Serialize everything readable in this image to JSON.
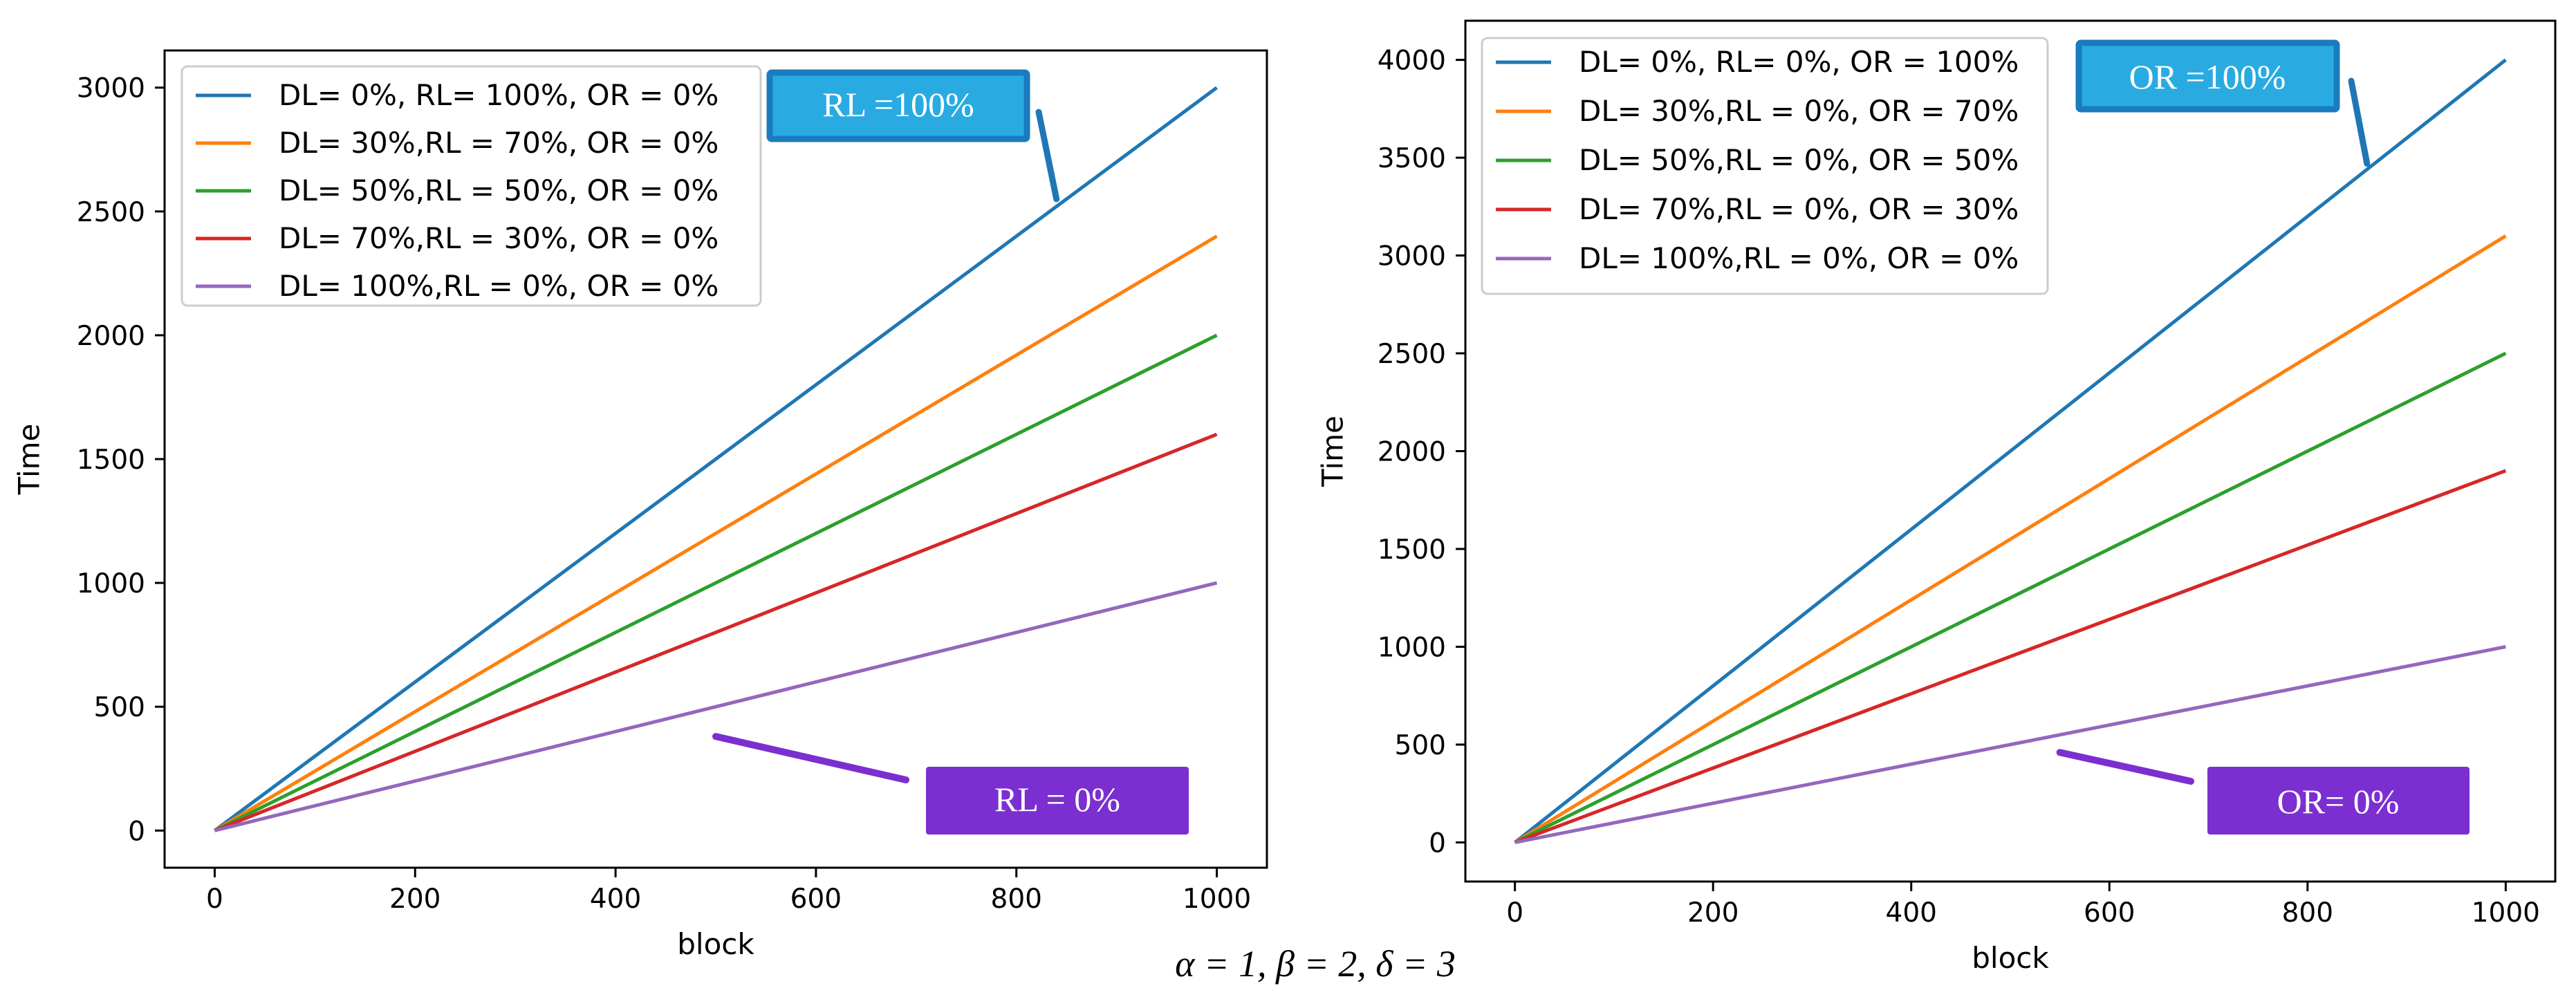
{
  "chart_data": [
    {
      "type": "line",
      "title": "",
      "xlabel": "block",
      "ylabel": "Time",
      "xlim": [
        -50,
        1050
      ],
      "ylim": [
        -150,
        3150
      ],
      "xticks": [
        0,
        200,
        400,
        600,
        800,
        1000
      ],
      "yticks": [
        0,
        500,
        1000,
        1500,
        2000,
        2500,
        3000
      ],
      "grid": false,
      "legend_position": "upper-left",
      "x": [
        0,
        1000
      ],
      "series": [
        {
          "name": "DL= 0%, RL= 100%, OR = 0%",
          "color": "#1f77b4",
          "values": [
            0,
            3000
          ]
        },
        {
          "name": "DL= 30%,RL = 70%, OR = 0%",
          "color": "#ff7f0e",
          "values": [
            0,
            2400
          ]
        },
        {
          "name": "DL= 50%,RL = 50%, OR = 0%",
          "color": "#2ca02c",
          "values": [
            0,
            2000
          ]
        },
        {
          "name": "DL= 70%,RL = 30%, OR = 0%",
          "color": "#d62728",
          "values": [
            0,
            1600
          ]
        },
        {
          "name": "DL= 100%,RL = 0%, OR = 0%",
          "color": "#9467bd",
          "values": [
            0,
            1000
          ]
        }
      ],
      "annotations": [
        {
          "text": "RL =100%",
          "style": "blue",
          "fill": "#29abe2",
          "border": "#1a7bbf",
          "pointer_color": "#1f77b4",
          "target": [
            840,
            2550
          ]
        },
        {
          "text": "RL = 0%",
          "style": "purple",
          "fill": "#7b2fd0",
          "border": "#7b2fd0",
          "pointer_color": "#7b2fd0",
          "target": [
            500,
            380
          ]
        }
      ]
    },
    {
      "type": "line",
      "title": "",
      "xlabel": "block",
      "ylabel": "Time",
      "xlim": [
        -50,
        1050
      ],
      "ylim": [
        -200,
        4200
      ],
      "xticks": [
        0,
        200,
        400,
        600,
        800,
        1000
      ],
      "yticks": [
        0,
        500,
        1000,
        1500,
        2000,
        2500,
        3000,
        3500,
        4000
      ],
      "grid": false,
      "legend_position": "upper-left",
      "x": [
        0,
        1000
      ],
      "series": [
        {
          "name": "DL= 0%, RL= 0%, OR = 100%",
          "color": "#1f77b4",
          "values": [
            0,
            4000
          ]
        },
        {
          "name": "DL= 30%,RL = 0%, OR = 70%",
          "color": "#ff7f0e",
          "values": [
            0,
            3100
          ]
        },
        {
          "name": "DL= 50%,RL = 0%, OR = 50%",
          "color": "#2ca02c",
          "values": [
            0,
            2500
          ]
        },
        {
          "name": "DL= 70%,RL = 0%, OR = 30%",
          "color": "#d62728",
          "values": [
            0,
            1900
          ]
        },
        {
          "name": "DL= 100%,RL = 0%, OR = 0%",
          "color": "#9467bd",
          "values": [
            0,
            1000
          ]
        }
      ],
      "annotations": [
        {
          "text": "OR =100%",
          "style": "blue",
          "fill": "#29abe2",
          "border": "#1a7bbf",
          "pointer_color": "#1f77b4",
          "target": [
            860,
            3470
          ]
        },
        {
          "text": "OR= 0%",
          "style": "purple",
          "fill": "#7b2fd0",
          "border": "#7b2fd0",
          "pointer_color": "#7b2fd0",
          "target": [
            550,
            460
          ]
        }
      ]
    }
  ],
  "caption": "α = 1, β = 2, δ = 3"
}
